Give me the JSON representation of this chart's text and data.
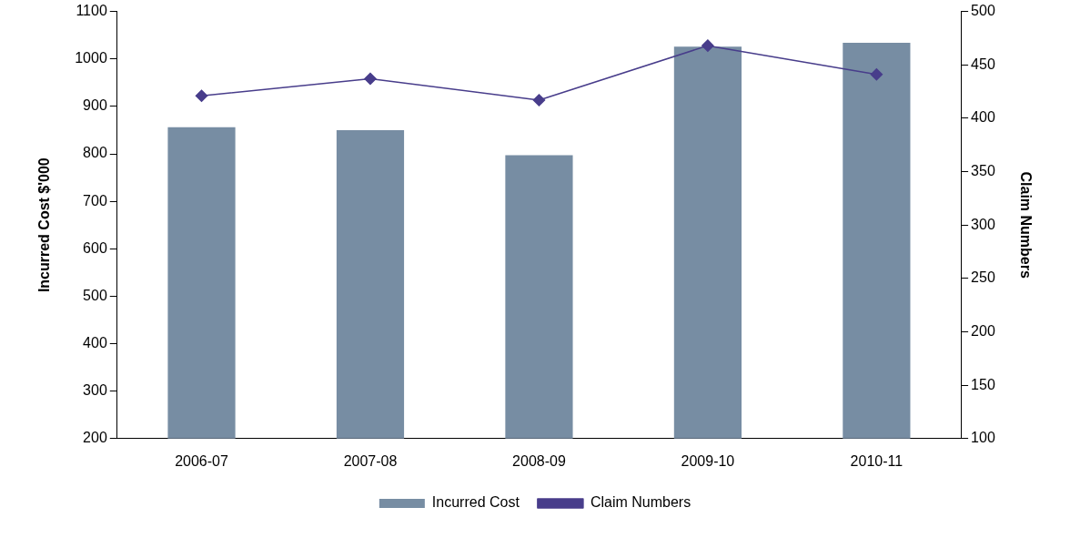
{
  "chart_data": {
    "type": "bar",
    "categories": [
      "2006-07",
      "2007-08",
      "2008-09",
      "2009-10",
      "2010-11"
    ],
    "ylabel": "Incurred Cost $'000",
    "y2label": "Claim Numbers",
    "ylim": [
      200,
      1100
    ],
    "yticks": [
      200,
      300,
      400,
      500,
      600,
      700,
      800,
      900,
      1000,
      1100
    ],
    "y2lim": [
      100,
      500
    ],
    "y2ticks": [
      100,
      150,
      200,
      250,
      300,
      350,
      400,
      450,
      500
    ],
    "series": [
      {
        "name": "Incurred Cost",
        "color": "#778da3",
        "values": [
          856,
          850,
          797,
          1026,
          1034
        ]
      },
      {
        "name": "Claim Numbers",
        "type": "line",
        "axis": "y2",
        "color": "#483d8b",
        "values": [
          421,
          437,
          417,
          468,
          441
        ]
      }
    ],
    "legend": "bottom",
    "grid": false,
    "marker": "diamond",
    "line_style": "solid"
  }
}
